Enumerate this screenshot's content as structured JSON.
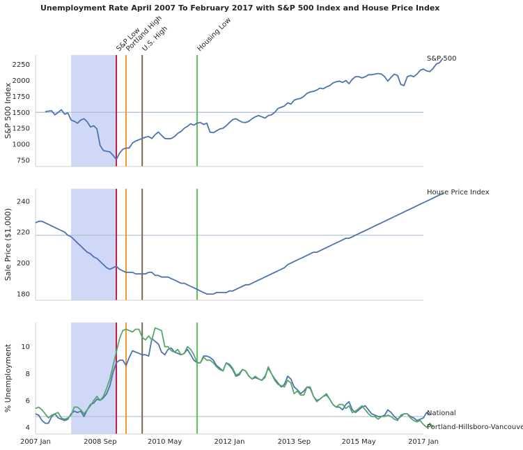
{
  "chart_data": {
    "title": "Unemployment Rate April 2007 To February 2017 with S&P 500 Index and House Price Index",
    "x_range": [
      "2007-01",
      "2017-01"
    ],
    "x_ticks": [
      {
        "date": "2007-01",
        "label": "2007 Jan"
      },
      {
        "date": "2008-09",
        "label": "2008 Sep"
      },
      {
        "date": "2010-05",
        "label": "2010 May"
      },
      {
        "date": "2012-01",
        "label": "2012 Jan"
      },
      {
        "date": "2013-09",
        "label": "2013 Sep"
      },
      {
        "date": "2015-05",
        "label": "2015 May"
      },
      {
        "date": "2017-01",
        "label": "2017 Jan"
      }
    ],
    "shaded_period": {
      "start": "2007-12",
      "end": "2009-02",
      "color": "#cfd8f6"
    },
    "events": [
      {
        "label": "S&P Low",
        "date": "2009-02",
        "color": "#c6173c"
      },
      {
        "label": "Portland High",
        "date": "2009-05",
        "color": "#f0962d"
      },
      {
        "label": "U.S. High",
        "date": "2009-10",
        "color": "#7a6552"
      },
      {
        "label": "Housing Low",
        "date": "2011-03",
        "color": "#5cbf5c"
      }
    ],
    "panels": [
      {
        "id": "sp500",
        "type": "line",
        "ylabel": "S&P 500 Index",
        "ylim": [
          650,
          2400
        ],
        "yticks": [
          750,
          1000,
          1250,
          1500,
          1750,
          2000,
          2250
        ],
        "hline": 1500,
        "series": [
          {
            "name": "S&P 500",
            "color": "#4c72b0",
            "start": "2007-04",
            "values": [
              1510,
              1520,
              1525,
              1460,
              1500,
              1540,
              1470,
              1490,
              1380,
              1360,
              1330,
              1380,
              1400,
              1350,
              1270,
              1290,
              1240,
              980,
              900,
              890,
              880,
              825,
              760,
              860,
              920,
              940,
              940,
              1020,
              1050,
              1070,
              1090,
              1110,
              1120,
              1090,
              1150,
              1190,
              1140,
              1090,
              1085,
              1090,
              1120,
              1170,
              1200,
              1250,
              1280,
              1320,
              1300,
              1330,
              1340,
              1310,
              1330,
              1190,
              1180,
              1210,
              1240,
              1250,
              1290,
              1340,
              1385,
              1400,
              1370,
              1345,
              1340,
              1360,
              1400,
              1430,
              1450,
              1430,
              1410,
              1450,
              1460,
              1500,
              1560,
              1580,
              1600,
              1650,
              1630,
              1690,
              1710,
              1720,
              1750,
              1800,
              1820,
              1830,
              1850,
              1880,
              1870,
              1900,
              1920,
              1960,
              1980,
              1990,
              1970,
              2000,
              1950,
              2020,
              2060,
              2060,
              2040,
              2060,
              2090,
              2090,
              2100,
              2110,
              2100,
              2060,
              1990,
              2050,
              2100,
              2080,
              1940,
              1920,
              2060,
              2080,
              2060,
              2100,
              2160,
              2180,
              2150,
              2140,
              2190,
              2260,
              2280,
              2350
            ]
          }
        ]
      },
      {
        "id": "hpi",
        "type": "line",
        "ylabel": "Sale Price ($1,000)",
        "ylim": [
          176,
          248
        ],
        "yticks": [
          180,
          200,
          220,
          240
        ],
        "hline": 218,
        "series": [
          {
            "name": "House Price Index",
            "color": "#4c72b0",
            "start": "2007-01",
            "values": [
              226,
              227,
              227,
              226,
              225,
              224,
              223,
              222,
              221,
              220,
              218,
              217,
              215,
              213,
              211,
              209,
              207,
              206,
              204,
              203,
              201,
              199,
              197,
              196,
              197,
              198,
              196,
              195,
              194,
              194,
              194,
              193,
              193,
              193,
              193,
              194,
              194,
              192,
              192,
              191,
              191,
              191,
              190,
              189,
              188,
              187,
              187,
              186,
              185,
              184,
              183,
              182,
              181,
              180,
              180,
              180,
              181,
              181,
              181,
              181,
              182,
              182,
              183,
              184,
              185,
              186,
              186,
              187,
              188,
              189,
              190,
              191,
              192,
              193,
              194,
              195,
              196,
              197,
              199,
              200,
              201,
              202,
              203,
              204,
              205,
              206,
              207,
              207,
              208,
              209,
              210,
              211,
              212,
              213,
              214,
              215,
              216,
              216,
              217,
              218,
              219,
              220,
              221,
              222,
              223,
              224,
              225,
              226,
              227,
              228,
              229,
              230,
              231,
              232,
              233,
              234,
              235,
              236,
              237,
              238,
              239,
              240,
              241,
              242,
              243,
              244,
              245
            ]
          }
        ]
      },
      {
        "id": "unemployment",
        "type": "line",
        "ylabel": "% Unemployment",
        "ylim": [
          3.5,
          11.8
        ],
        "yticks": [
          4,
          6,
          8,
          10
        ],
        "hline": 4.8,
        "series": [
          {
            "name": "National",
            "color": "#4c72b0",
            "start": "2007-01",
            "values": [
              5.0,
              4.9,
              4.5,
              4.3,
              4.3,
              4.8,
              5.0,
              4.7,
              4.6,
              4.5,
              4.6,
              5.0,
              5.2,
              5.1,
              5.2,
              4.8,
              5.3,
              5.7,
              5.8,
              6.1,
              6.0,
              6.2,
              6.5,
              7.1,
              8.1,
              8.8,
              9.0,
              9.0,
              8.6,
              9.2,
              9.7,
              9.6,
              9.5,
              9.4,
              9.4,
              9.3,
              10.6,
              10.4,
              10.2,
              9.6,
              9.4,
              9.8,
              9.9,
              9.6,
              9.5,
              9.4,
              9.5,
              9.8,
              9.4,
              9.0,
              8.8,
              8.8,
              9.3,
              9.3,
              9.2,
              9.0,
              8.6,
              8.4,
              8.2,
              8.8,
              8.6,
              8.3,
              7.8,
              7.9,
              8.3,
              8.2,
              7.8,
              7.6,
              7.7,
              7.6,
              7.5,
              7.8,
              8.4,
              8.0,
              7.6,
              7.3,
              7.0,
              7.2,
              7.8,
              7.6,
              7.0,
              6.8,
              6.5,
              6.7,
              7.0,
              6.9,
              6.3,
              6.0,
              6.1,
              6.3,
              6.4,
              6.1,
              5.7,
              5.5,
              5.5,
              5.3,
              5.7,
              5.9,
              5.3,
              5.1,
              5.3,
              5.5,
              5.6,
              5.3,
              5.0,
              4.9,
              4.8,
              4.8,
              4.9,
              5.3,
              5.1,
              4.8,
              4.6,
              4.8,
              5.0,
              5.0,
              4.8,
              4.7,
              4.5,
              4.6,
              4.7,
              5.1,
              4.9
            ]
          },
          {
            "name": "Portland-Hillsboro-Vancouver",
            "color": "#55a868",
            "start": "2007-01",
            "values": [
              5.4,
              5.5,
              5.3,
              5.0,
              4.7,
              4.9,
              5.0,
              5.1,
              4.7,
              4.6,
              4.7,
              4.9,
              5.5,
              5.5,
              5.3,
              5.0,
              5.3,
              5.6,
              6.0,
              6.3,
              6.0,
              6.3,
              6.9,
              7.6,
              8.6,
              9.6,
              10.6,
              11.2,
              11.3,
              11.2,
              11.1,
              11.3,
              11.3,
              10.7,
              10.5,
              10.8,
              10.5,
              11.4,
              11.3,
              11.2,
              10.0,
              10.0,
              9.7,
              9.6,
              9.8,
              9.4,
              9.5,
              10.0,
              9.8,
              9.4,
              8.8,
              8.8,
              9.2,
              9.0,
              9.0,
              8.8,
              8.5,
              8.3,
              8.2,
              8.8,
              8.7,
              8.4,
              7.9,
              8.0,
              8.3,
              8.2,
              7.8,
              7.6,
              7.8,
              7.6,
              7.5,
              7.7,
              8.5,
              8.0,
              7.5,
              7.2,
              7.1,
              7.0,
              7.5,
              7.3,
              6.5,
              6.7,
              6.4,
              6.4,
              7.0,
              7.0,
              6.3,
              5.9,
              6.1,
              6.3,
              6.5,
              6.1,
              5.7,
              5.5,
              5.7,
              5.7,
              5.4,
              5.6,
              5.1,
              5.2,
              5.4,
              5.6,
              5.3,
              5.0,
              4.8,
              4.8,
              4.6,
              4.8,
              4.8,
              4.9,
              4.8,
              4.6,
              4.5,
              4.9,
              5.0,
              5.0,
              4.7,
              4.5,
              4.4,
              4.5,
              4.2,
              4.0,
              4.3,
              4.0
            ]
          }
        ]
      }
    ]
  }
}
